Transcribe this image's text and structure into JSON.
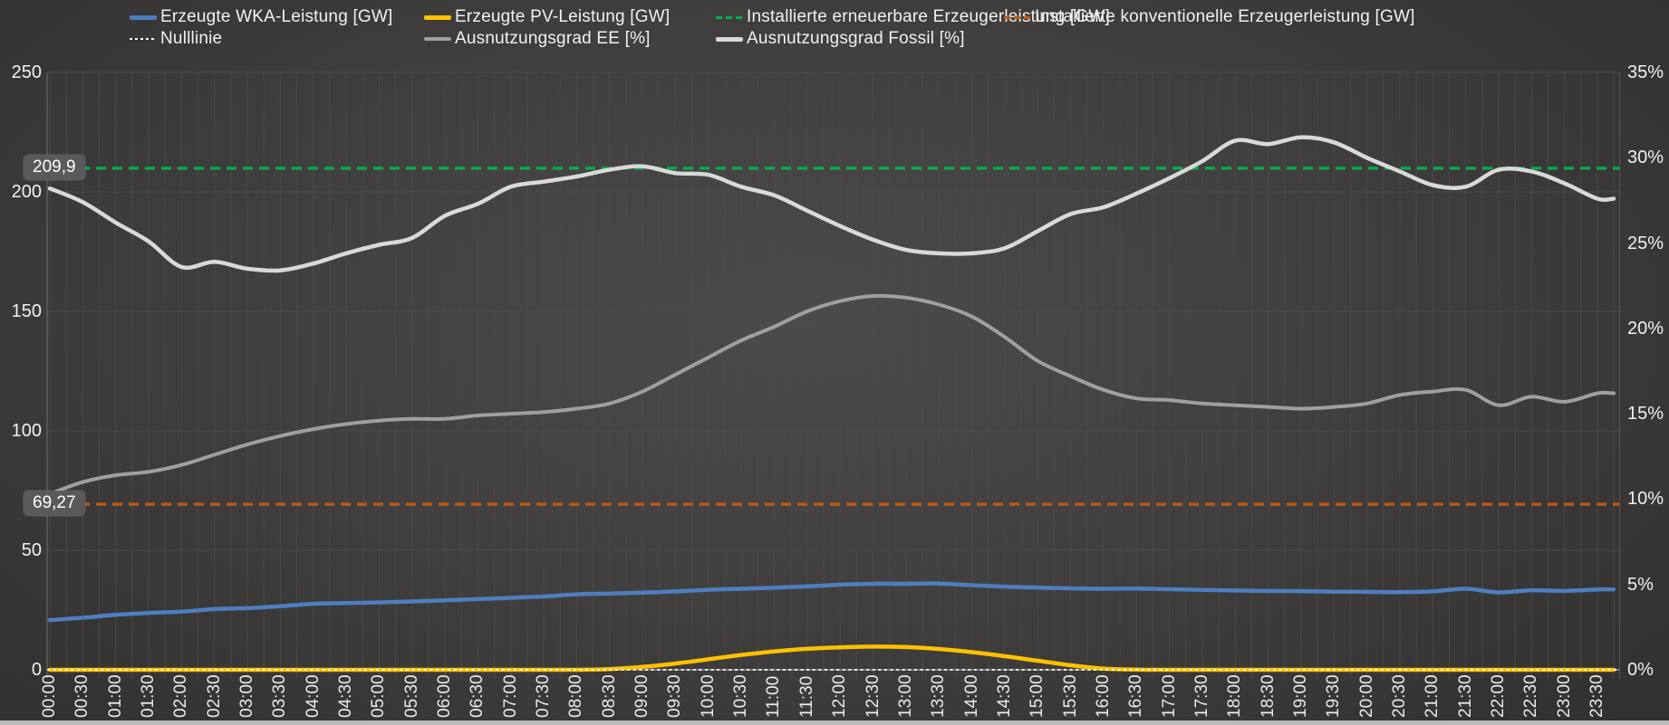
{
  "annotations": {
    "renewable_capacity_label": "209,9",
    "conventional_capacity_label": "69,27"
  },
  "colors": {
    "wka": "#4d7ebf",
    "pv": "#fec100",
    "renewable_capacity": "#00b050",
    "conventional_capacity": "#bf5a15",
    "ee_utilization": "#9f9f9f",
    "fossil_utilization": "#d9d9d7",
    "nulllinie": "#ffffff",
    "background": "#3a3938",
    "gridline": "#4c4c4c"
  },
  "chart_data": {
    "type": "line",
    "x": [
      "00:00",
      "00:30",
      "01:00",
      "01:30",
      "02:00",
      "02:30",
      "03:00",
      "03:30",
      "04:00",
      "04:30",
      "05:00",
      "05:30",
      "06:00",
      "06:30",
      "07:00",
      "07:30",
      "08:00",
      "08:30",
      "09:00",
      "09:30",
      "10:00",
      "10:30",
      "11:00",
      "11:30",
      "12:00",
      "12:30",
      "13:00",
      "13:30",
      "14:00",
      "14:30",
      "15:00",
      "15:30",
      "16:00",
      "16:30",
      "17:00",
      "17:30",
      "18:00",
      "18:30",
      "19:00",
      "19:30",
      "20:00",
      "20:30",
      "21:00",
      "21:30",
      "22:00",
      "22:30",
      "23:00",
      "23:30"
    ],
    "series": [
      {
        "name": "Erzeugte WKA-Leistung [GW]",
        "axis": "left",
        "unit": "GW",
        "color": "#4d7ebf",
        "values": [
          20.8,
          21.8,
          23.0,
          23.8,
          24.3,
          25.4,
          25.8,
          26.6,
          27.6,
          27.9,
          28.2,
          28.6,
          29.1,
          29.6,
          30.1,
          30.7,
          31.6,
          31.9,
          32.3,
          32.8,
          33.5,
          33.9,
          34.3,
          34.9,
          35.6,
          36.0,
          36.0,
          36.1,
          35.4,
          34.8,
          34.4,
          34.1,
          33.9,
          34.0,
          33.7,
          33.4,
          33.2,
          33.0,
          32.9,
          32.7,
          32.6,
          32.5,
          32.8,
          33.9,
          32.4,
          33.3,
          33.0,
          33.6
        ]
      },
      {
        "name": "Erzeugte PV-Leistung [GW]",
        "axis": "left",
        "unit": "GW",
        "color": "#fec100",
        "values": [
          0,
          0,
          0,
          0,
          0,
          0,
          0,
          0,
          0,
          0,
          0,
          0,
          0,
          0,
          0,
          0,
          0,
          0.3,
          1.2,
          2.6,
          4.4,
          6.2,
          7.7,
          8.8,
          9.4,
          9.7,
          9.5,
          8.7,
          7.4,
          5.7,
          3.8,
          1.9,
          0.5,
          0.1,
          0,
          0,
          0,
          0,
          0,
          0,
          0,
          0,
          0,
          0,
          0,
          0,
          0,
          0
        ]
      },
      {
        "name": "Ausnutzungsgrad EE [%]",
        "axis": "right",
        "unit": "%",
        "color": "#9f9f9f",
        "values": [
          10.3,
          11.0,
          11.4,
          11.6,
          12.0,
          12.6,
          13.2,
          13.7,
          14.1,
          14.4,
          14.6,
          14.7,
          14.7,
          14.9,
          15.0,
          15.1,
          15.3,
          15.6,
          16.3,
          17.3,
          18.3,
          19.3,
          20.1,
          21.0,
          21.6,
          21.9,
          21.8,
          21.4,
          20.7,
          19.5,
          18.1,
          17.2,
          16.4,
          15.9,
          15.8,
          15.6,
          15.5,
          15.4,
          15.3,
          15.4,
          15.6,
          16.1,
          16.3,
          16.4,
          15.5,
          16.0,
          15.7,
          16.2
        ]
      },
      {
        "name": "Ausnutzungsgrad Fossil [%]",
        "axis": "right",
        "unit": "%",
        "color": "#d9d9d7",
        "values": [
          28.2,
          27.4,
          26.2,
          25.1,
          23.6,
          23.9,
          23.5,
          23.4,
          23.8,
          24.4,
          24.9,
          25.3,
          26.6,
          27.3,
          28.3,
          28.6,
          28.9,
          29.3,
          29.5,
          29.1,
          29.0,
          28.3,
          27.8,
          26.9,
          26.0,
          25.2,
          24.6,
          24.4,
          24.4,
          24.7,
          25.7,
          26.7,
          27.1,
          27.9,
          28.8,
          29.8,
          31.0,
          30.8,
          31.2,
          30.9,
          30.0,
          29.2,
          28.4,
          28.3,
          29.3,
          29.2,
          28.5,
          27.6
        ]
      }
    ],
    "reference_lines": [
      {
        "name": "Installierte erneuerbare Erzeugerleistung [GW]",
        "value": 209.9,
        "label": "209,9",
        "axis": "left",
        "style": "dashed",
        "color": "#00b050"
      },
      {
        "name": "Installierte konventionelle Erzeugerleistung [GW]",
        "value": 69.27,
        "label": "69,27",
        "axis": "left",
        "style": "dashed",
        "color": "#bf5a15"
      },
      {
        "name": "Nulllinie",
        "value": 0,
        "label": "",
        "axis": "left",
        "style": "dotted",
        "color": "#ffffff"
      }
    ],
    "left_axis": {
      "min": 0,
      "max": 250,
      "ticks": [
        "0",
        "50",
        "100",
        "150",
        "200",
        "250"
      ]
    },
    "right_axis": {
      "min": 0,
      "max": 35,
      "ticks": [
        "0%",
        "5%",
        "10%",
        "15%",
        "20%",
        "25%",
        "30%",
        "35%"
      ]
    },
    "grid": true,
    "legend_position": "top"
  }
}
